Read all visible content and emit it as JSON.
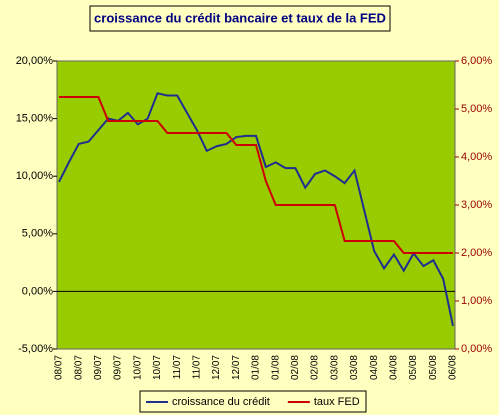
{
  "chart_data": {
    "type": "line",
    "title": "croissance du crédit bancaire et taux de la FED",
    "categories": [
      "08/07",
      null,
      "08/07",
      null,
      "09/07",
      null,
      "09/07",
      null,
      "10/07",
      null,
      "10/07",
      null,
      "11/07",
      null,
      "11/07",
      null,
      "12/07",
      null,
      "12/07",
      null,
      "01/08",
      null,
      "01/08",
      null,
      "02/08",
      null,
      "02/08",
      null,
      "03/08",
      null,
      "03/08",
      null,
      "04/08",
      null,
      "04/08",
      null,
      "05/08",
      null,
      "05/08",
      null,
      "06/08"
    ],
    "series": [
      {
        "name": "croissance du crédit",
        "color": "#1f2f8f",
        "values": [
          9.5,
          11.2,
          12.8,
          13.0,
          14.0,
          15.0,
          14.8,
          15.5,
          14.5,
          15.0,
          17.2,
          17.0,
          17.0,
          15.5,
          14.0,
          12.2,
          12.6,
          12.8,
          13.4,
          13.5,
          13.5,
          10.8,
          11.2,
          10.7,
          10.7,
          9.0,
          10.2,
          10.5,
          10.0,
          9.4,
          10.5,
          7.0,
          3.5,
          2.0,
          3.2,
          1.8,
          3.3,
          2.2,
          2.7,
          1.1,
          -3.0
        ]
      },
      {
        "name": "taux FED",
        "color": "#cc0000",
        "axis": "y2",
        "values": [
          5.25,
          5.25,
          5.25,
          5.25,
          5.25,
          4.75,
          4.75,
          4.75,
          4.75,
          4.75,
          4.75,
          4.5,
          4.5,
          4.5,
          4.5,
          4.5,
          4.5,
          4.5,
          4.25,
          4.25,
          4.25,
          3.5,
          3.0,
          3.0,
          3.0,
          3.0,
          3.0,
          3.0,
          3.0,
          2.25,
          2.25,
          2.25,
          2.25,
          2.25,
          2.25,
          2.0,
          2.0,
          2.0,
          2.0,
          2.0,
          2.0
        ]
      }
    ],
    "ylim": [
      -5,
      20
    ],
    "yticks": [
      {
        "value": -5,
        "label": "-5,00%"
      },
      {
        "value": 0,
        "label": "0,00%"
      },
      {
        "value": 5,
        "label": "5,00%"
      },
      {
        "value": 10,
        "label": "10,00%"
      },
      {
        "value": 15,
        "label": "15,00%"
      },
      {
        "value": 20,
        "label": "20,00%"
      }
    ],
    "y2lim": [
      0,
      6
    ],
    "y2ticks": [
      {
        "value": 0,
        "label": "0,00%"
      },
      {
        "value": 1,
        "label": "1,00%"
      },
      {
        "value": 2,
        "label": "2,00%"
      },
      {
        "value": 3,
        "label": "3,00%"
      },
      {
        "value": 4,
        "label": "4,00%"
      },
      {
        "value": 5,
        "label": "5,00%"
      },
      {
        "value": 6,
        "label": "6,00%"
      }
    ],
    "plot_color": "#99cc00",
    "legend": "bottom"
  }
}
